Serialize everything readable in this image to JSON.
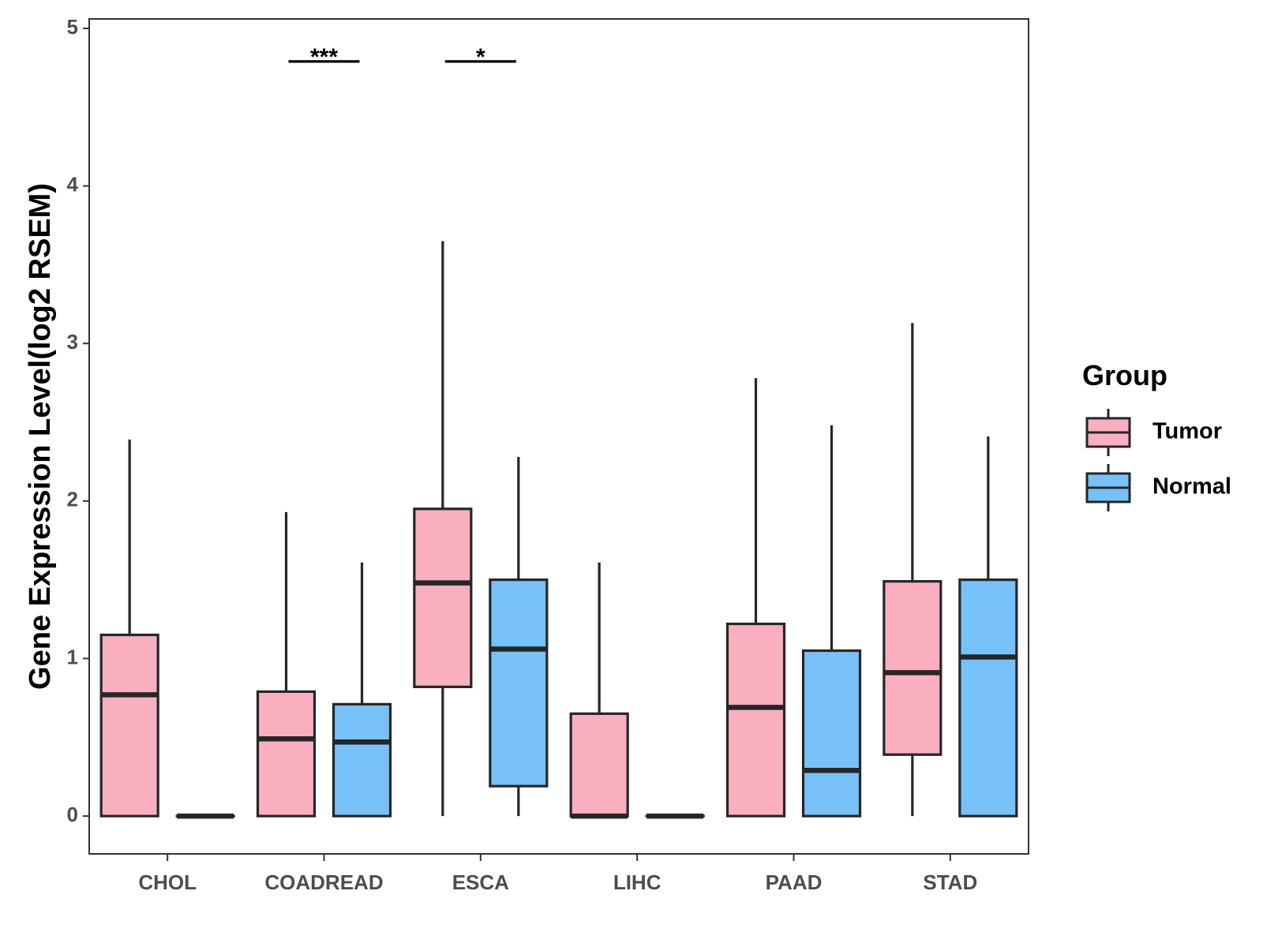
{
  "chart_data": {
    "type": "boxplot",
    "title": "",
    "xlabel": "",
    "ylabel": "Gene Expression Level(log2 RSEM)",
    "ylim": [
      -0.24,
      5.06
    ],
    "yticks": [
      "0",
      "1",
      "2",
      "3",
      "4",
      "5"
    ],
    "categories": [
      "CHOL",
      "COADREAD",
      "ESCA",
      "LIHC",
      "PAAD",
      "STAD"
    ],
    "legend": {
      "title": "Group",
      "position": "right",
      "entries": [
        "Tumor",
        "Normal"
      ]
    },
    "series": [
      {
        "name": "Tumor",
        "color": "#F9AFC0",
        "boxes": [
          {
            "category": "CHOL",
            "whisker_low": 0,
            "q1": 0,
            "median": 0.77,
            "q3": 1.15,
            "whisker_high": 2.39
          },
          {
            "category": "COADREAD",
            "whisker_low": 0,
            "q1": 0,
            "median": 0.49,
            "q3": 0.79,
            "whisker_high": 1.93
          },
          {
            "category": "ESCA",
            "whisker_low": 0,
            "q1": 0.82,
            "median": 1.48,
            "q3": 1.95,
            "whisker_high": 3.65
          },
          {
            "category": "LIHC",
            "whisker_low": 0,
            "q1": 0,
            "median": 0,
            "q3": 0.65,
            "whisker_high": 1.61
          },
          {
            "category": "PAAD",
            "whisker_low": 0,
            "q1": 0,
            "median": 0.69,
            "q3": 1.22,
            "whisker_high": 2.78
          },
          {
            "category": "STAD",
            "whisker_low": 0,
            "q1": 0.39,
            "median": 0.91,
            "q3": 1.49,
            "whisker_high": 3.13
          }
        ]
      },
      {
        "name": "Normal",
        "color": "#77C1F8",
        "boxes": [
          {
            "category": "CHOL",
            "whisker_low": 0,
            "q1": 0,
            "median": 0,
            "q3": 0,
            "whisker_high": 0
          },
          {
            "category": "COADREAD",
            "whisker_low": 0,
            "q1": 0,
            "median": 0.47,
            "q3": 0.71,
            "whisker_high": 1.61
          },
          {
            "category": "ESCA",
            "whisker_low": 0,
            "q1": 0.19,
            "median": 1.06,
            "q3": 1.5,
            "whisker_high": 2.28
          },
          {
            "category": "LIHC",
            "whisker_low": 0,
            "q1": 0,
            "median": 0,
            "q3": 0,
            "whisker_high": 0
          },
          {
            "category": "PAAD",
            "whisker_low": 0,
            "q1": 0,
            "median": 0.29,
            "q3": 1.05,
            "whisker_high": 2.48
          },
          {
            "category": "STAD",
            "whisker_low": 0,
            "q1": 0,
            "median": 1.01,
            "q3": 1.5,
            "whisker_high": 2.41
          }
        ]
      }
    ],
    "annotations": [
      {
        "category": "COADREAD",
        "label": "***",
        "y": 4.79
      },
      {
        "category": "ESCA",
        "label": "*",
        "y": 4.79
      }
    ],
    "grid": false
  }
}
